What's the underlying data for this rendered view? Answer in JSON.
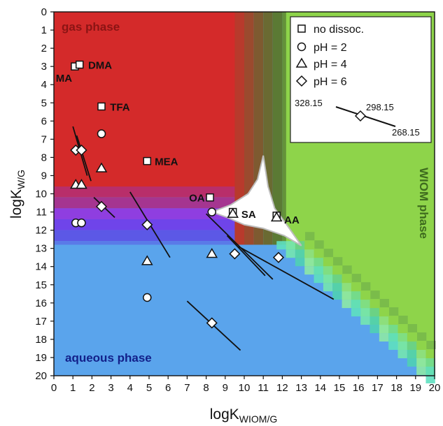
{
  "chart_data": {
    "type": "scatter",
    "xlabel": "logK",
    "xlabel_sub": "WIOM/G",
    "ylabel": "logK",
    "ylabel_sub": "W/G",
    "xlim": [
      0,
      20
    ],
    "ylim": [
      0,
      20
    ],
    "y_inverted": true,
    "x_ticks": [
      "0",
      "1",
      "2",
      "3",
      "4",
      "5",
      "6",
      "7",
      "8",
      "9",
      "10",
      "11",
      "12",
      "13",
      "14",
      "15",
      "16",
      "17",
      "18",
      "19",
      "20"
    ],
    "y_ticks": [
      "0",
      "1",
      "2",
      "3",
      "4",
      "5",
      "6",
      "7",
      "8",
      "9",
      "10",
      "11",
      "12",
      "13",
      "14",
      "15",
      "16",
      "17",
      "18",
      "19",
      "20"
    ],
    "regions": {
      "gas": {
        "label": "gas phase",
        "color": "#d42a2a",
        "label_color": "#8b1414"
      },
      "aqueous": {
        "label": "aqueous phase",
        "color": "#5aa4ec",
        "label_color": "#12208a"
      },
      "wiom": {
        "label": "WIOM phase",
        "color": "#8ed44a",
        "label_color": "#3e6b1e"
      },
      "mixed": {
        "color": "#9340d6"
      },
      "transition": {
        "color": "#5ee0c0"
      },
      "three_phase": {
        "color": "#ffffff"
      }
    },
    "legend": {
      "placement": "top-right",
      "entries": [
        {
          "marker": "square",
          "label": "no dissoc."
        },
        {
          "marker": "circle",
          "label": "pH = 2"
        },
        {
          "marker": "triangle",
          "label": "pH = 4"
        },
        {
          "marker": "diamond",
          "label": "pH = 6"
        }
      ],
      "temperature_labels": [
        "328.15",
        "298.15",
        "268.15"
      ]
    },
    "series": [
      {
        "marker": "square",
        "points": [
          {
            "x": 1.1,
            "y": 3.0
          },
          {
            "x": 1.35,
            "y": 2.9
          },
          {
            "x": 2.5,
            "y": 5.2
          },
          {
            "x": 4.9,
            "y": 8.2
          },
          {
            "x": 8.2,
            "y": 10.2
          },
          {
            "x": 9.4,
            "y": 11.0
          },
          {
            "x": 11.7,
            "y": 11.2
          }
        ]
      },
      {
        "marker": "circle",
        "points": [
          {
            "x": 2.5,
            "y": 6.7
          },
          {
            "x": 1.15,
            "y": 11.6
          },
          {
            "x": 1.45,
            "y": 11.6
          },
          {
            "x": 8.3,
            "y": 11.0
          },
          {
            "x": 4.9,
            "y": 15.7
          }
        ]
      },
      {
        "marker": "triangle",
        "points": [
          {
            "x": 2.5,
            "y": 8.6
          },
          {
            "x": 1.15,
            "y": 9.5
          },
          {
            "x": 1.45,
            "y": 9.5
          },
          {
            "x": 9.4,
            "y": 11.1
          },
          {
            "x": 11.7,
            "y": 11.3
          },
          {
            "x": 8.3,
            "y": 13.3
          },
          {
            "x": 4.9,
            "y": 13.7
          }
        ]
      },
      {
        "marker": "diamond",
        "points": [
          {
            "x": 1.15,
            "y": 7.6
          },
          {
            "x": 1.45,
            "y": 7.6
          },
          {
            "x": 2.5,
            "y": 10.7
          },
          {
            "x": 4.9,
            "y": 11.7
          },
          {
            "x": 9.5,
            "y": 13.3
          },
          {
            "x": 11.8,
            "y": 13.5
          },
          {
            "x": 8.3,
            "y": 17.1
          }
        ]
      }
    ],
    "temperature_lines": [
      {
        "x1": 1.0,
        "y1": 6.3,
        "x2": 1.75,
        "y2": 9.0
      },
      {
        "x1": 1.2,
        "y1": 6.8,
        "x2": 1.95,
        "y2": 9.3
      },
      {
        "x1": 2.1,
        "y1": 10.2,
        "x2": 3.2,
        "y2": 11.3
      },
      {
        "x1": 4.0,
        "y1": 9.9,
        "x2": 6.1,
        "y2": 13.5
      },
      {
        "x1": 8.0,
        "y1": 11.1,
        "x2": 11.5,
        "y2": 14.7
      },
      {
        "x1": 9.1,
        "y1": 12.3,
        "x2": 11.1,
        "y2": 14.5
      },
      {
        "x1": 9.7,
        "y1": 12.9,
        "x2": 14.7,
        "y2": 15.8
      },
      {
        "x1": 7.0,
        "y1": 15.9,
        "x2": 9.8,
        "y2": 18.6
      }
    ],
    "compound_labels": [
      {
        "text": "DMA",
        "x": 1.8,
        "y": 2.9
      },
      {
        "text": "MA",
        "x": 0.1,
        "y": 3.6
      },
      {
        "text": "TFA",
        "x": 2.95,
        "y": 5.2
      },
      {
        "text": "MEA",
        "x": 5.3,
        "y": 8.2
      },
      {
        "text": "OA",
        "x": 7.1,
        "y": 10.2
      },
      {
        "text": "SA",
        "x": 9.85,
        "y": 11.1
      },
      {
        "text": "AA",
        "x": 12.1,
        "y": 11.4
      }
    ]
  }
}
